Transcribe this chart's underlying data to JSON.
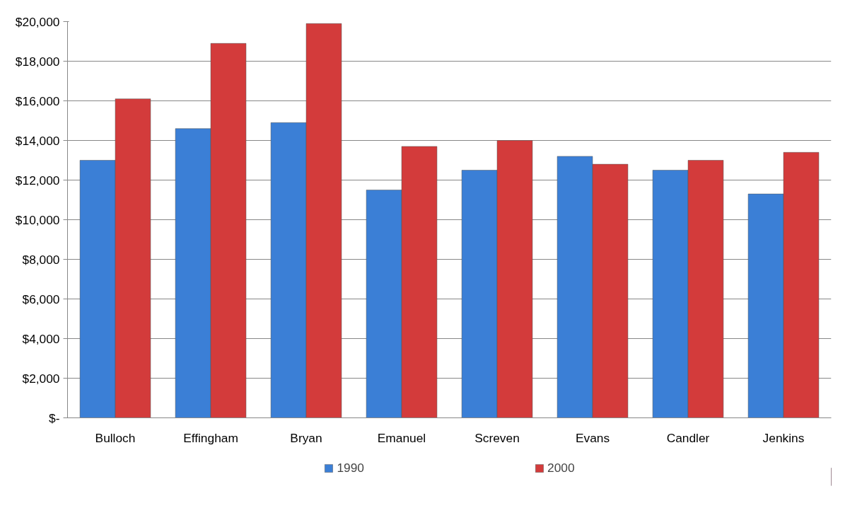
{
  "chart_data": {
    "type": "bar",
    "categories": [
      "Bulloch",
      "Effingham",
      "Bryan",
      "Emanuel",
      "Screven",
      "Evans",
      "Candler",
      "Jenkins"
    ],
    "series": [
      {
        "name": "1990",
        "color": "#3b7fd6",
        "values": [
          13000,
          14600,
          14900,
          11500,
          12500,
          13200,
          12500,
          11300
        ]
      },
      {
        "name": "2000",
        "color": "#d33b3b",
        "values": [
          16100,
          18900,
          19900,
          13700,
          14000,
          12800,
          13000,
          13400
        ]
      }
    ],
    "ylim": [
      0,
      20000
    ],
    "yticks": [
      {
        "value": 0,
        "label": "$-"
      },
      {
        "value": 2000,
        "label": "$2,000"
      },
      {
        "value": 4000,
        "label": "$4,000"
      },
      {
        "value": 6000,
        "label": "$6,000"
      },
      {
        "value": 8000,
        "label": "$8,000"
      },
      {
        "value": 10000,
        "label": "$10,000"
      },
      {
        "value": 12000,
        "label": "$12,000"
      },
      {
        "value": 14000,
        "label": "$14,000"
      },
      {
        "value": 16000,
        "label": "$16,000"
      },
      {
        "value": 18000,
        "label": "$18,000"
      },
      {
        "value": 20000,
        "label": "$20,000"
      }
    ],
    "grid": "y",
    "legend": "bottom"
  }
}
